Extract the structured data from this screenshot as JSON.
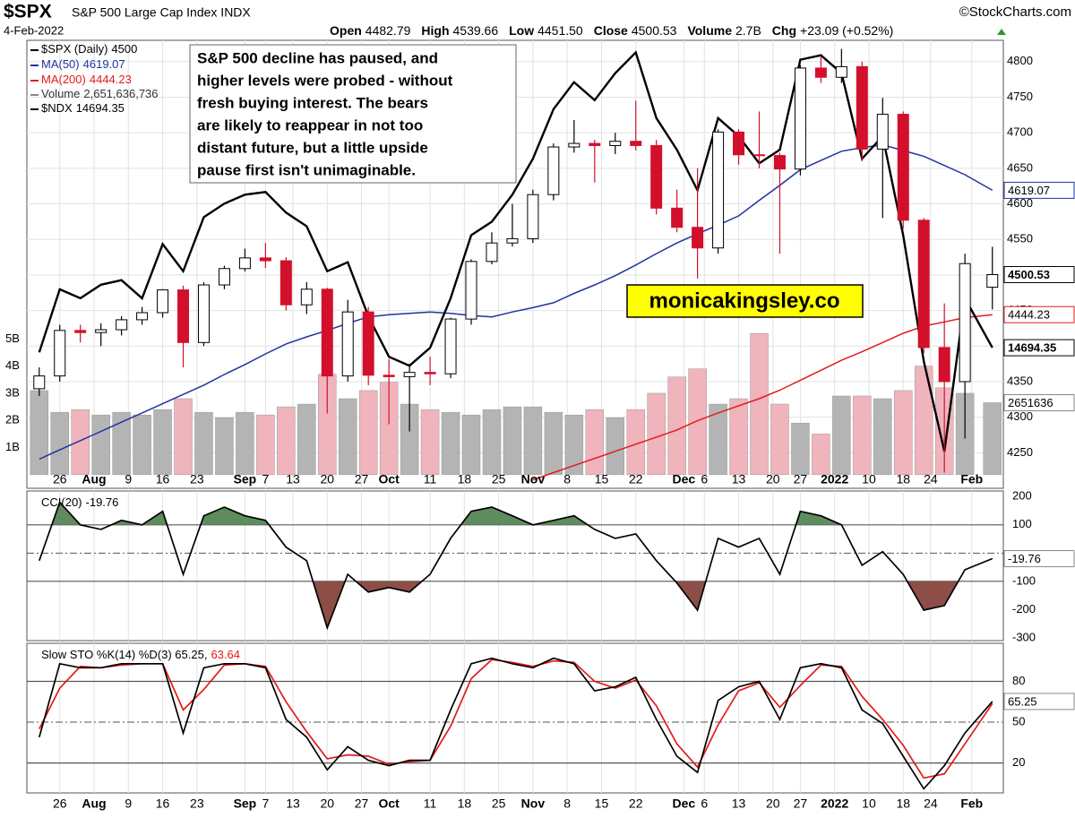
{
  "header": {
    "symbol": "$SPX",
    "name": "S&P 500 Large Cap Index INDX",
    "date": "4-Feb-2022",
    "source": "©StockCharts.com",
    "quote": [
      {
        "label": "Open",
        "value": "4482.79"
      },
      {
        "label": "High",
        "value": "4539.66"
      },
      {
        "label": "Low",
        "value": "4451.50"
      },
      {
        "label": "Close",
        "value": "4500.53"
      },
      {
        "label": "Volume",
        "value": "2.7B"
      },
      {
        "label": "Chg",
        "value": "+23.09 (+0.52%)"
      }
    ]
  },
  "chart_data": [
    {
      "type": "candlestick",
      "legend_name": "$SPX (Daily)",
      "legend_value": "4500",
      "x": [
        0,
        3,
        6,
        9,
        12,
        15,
        18,
        21,
        24,
        27,
        30,
        33,
        36,
        39,
        42,
        45,
        48,
        51,
        54,
        57,
        60,
        63,
        66,
        69,
        72,
        75,
        78,
        81,
        84,
        87,
        90,
        93,
        96,
        99,
        102,
        105,
        108,
        111,
        114,
        117,
        120,
        123,
        126,
        129,
        132,
        135,
        139
      ],
      "xlim": [
        -1.8,
        140.6
      ],
      "xticks": [
        {
          "value": 3,
          "label": "26"
        },
        {
          "value": 8,
          "label": "Aug",
          "bold": true
        },
        {
          "value": 13,
          "label": "9"
        },
        {
          "value": 18,
          "label": "16"
        },
        {
          "value": 23,
          "label": "23"
        },
        {
          "value": 30,
          "label": "Sep",
          "bold": true
        },
        {
          "value": 33,
          "label": "7"
        },
        {
          "value": 37,
          "label": "13"
        },
        {
          "value": 42,
          "label": "20"
        },
        {
          "value": 47,
          "label": "27"
        },
        {
          "value": 51,
          "label": "Oct",
          "bold": true
        },
        {
          "value": 57,
          "label": "11"
        },
        {
          "value": 62,
          "label": "18"
        },
        {
          "value": 67,
          "label": "25"
        },
        {
          "value": 72,
          "label": "Nov",
          "bold": true
        },
        {
          "value": 77,
          "label": "8"
        },
        {
          "value": 82,
          "label": "15"
        },
        {
          "value": 87,
          "label": "22"
        },
        {
          "value": 94,
          "label": "Dec",
          "bold": true
        },
        {
          "value": 97,
          "label": "6"
        },
        {
          "value": 102,
          "label": "13"
        },
        {
          "value": 107,
          "label": "20"
        },
        {
          "value": 111,
          "label": "27"
        },
        {
          "value": 116,
          "label": "2022",
          "bold": true
        },
        {
          "value": 121,
          "label": "10"
        },
        {
          "value": 126,
          "label": "18"
        },
        {
          "value": 130,
          "label": "24"
        },
        {
          "value": 136,
          "label": "Feb",
          "bold": true
        }
      ],
      "open": [
        4340,
        4358,
        4422,
        4419,
        4423,
        4437,
        4447,
        4479,
        4405,
        4486,
        4509,
        4524,
        4520,
        4458,
        4480,
        4358,
        4448,
        4359,
        4357,
        4363,
        4361,
        4438,
        4519,
        4545,
        4551,
        4613,
        4680,
        4685,
        4682,
        4688,
        4682,
        4594,
        4567,
        4538,
        4701,
        4669,
        4668,
        4649,
        4791,
        4778,
        4793,
        4677,
        4726,
        4577,
        4398,
        4350,
        4482.79
      ],
      "high": [
        4370,
        4430,
        4430,
        4432,
        4442,
        4455,
        4480,
        4485,
        4490,
        4513,
        4537,
        4545,
        4525,
        4490,
        4482,
        4465,
        4455,
        4382,
        4375,
        4385,
        4440,
        4522,
        4560,
        4600,
        4620,
        4685,
        4718,
        4690,
        4700,
        4745,
        4690,
        4620,
        4650,
        4705,
        4705,
        4730,
        4672,
        4795,
        4808,
        4818,
        4800,
        4749,
        4730,
        4580,
        4460,
        4530,
        4539.66
      ],
      "low": [
        4330,
        4350,
        4405,
        4400,
        4415,
        4430,
        4440,
        4370,
        4400,
        4480,
        4505,
        4510,
        4450,
        4445,
        4305,
        4350,
        4345,
        4290,
        4280,
        4345,
        4355,
        4430,
        4515,
        4540,
        4545,
        4605,
        4672,
        4630,
        4670,
        4675,
        4585,
        4560,
        4495,
        4530,
        4655,
        4650,
        4530,
        4640,
        4770,
        4770,
        4660,
        4580,
        4565,
        4390,
        4222,
        4270,
        4451.5
      ],
      "close": [
        4358,
        4422,
        4419,
        4423,
        4437,
        4447,
        4479,
        4405,
        4486,
        4509,
        4524,
        4520,
        4458,
        4480,
        4358,
        4448,
        4359,
        4357,
        4363,
        4361,
        4438,
        4519,
        4545,
        4551,
        4613,
        4680,
        4685,
        4682,
        4688,
        4682,
        4594,
        4567,
        4538,
        4701,
        4669,
        4668,
        4649,
        4791,
        4778,
        4793,
        4677,
        4726,
        4577,
        4398,
        4350,
        4516,
        4500.53
      ],
      "up_color": "#ffffff",
      "down_color": "#d2102c",
      "ylim": [
        4200,
        4830
      ],
      "yticks": [
        4250,
        4300,
        4350,
        4400,
        4450,
        4500,
        4550,
        4600,
        4650,
        4700,
        4750,
        4800
      ],
      "grid": true,
      "overlays": [
        {
          "name": "MA(200)",
          "color": "#e41a1a",
          "values": [
            null,
            null,
            null,
            null,
            null,
            null,
            null,
            null,
            null,
            null,
            null,
            null,
            null,
            null,
            null,
            null,
            null,
            null,
            null,
            null,
            null,
            null,
            null,
            null,
            4212,
            4222,
            4232,
            4242,
            4252,
            4262,
            4272,
            4282,
            4295,
            4306,
            4316,
            4326,
            4338,
            4352,
            4366,
            4380,
            4392,
            4405,
            4418,
            4428,
            4434,
            4440,
            4444.23
          ]
        },
        {
          "name": "MA(50)",
          "color": "#2233a0",
          "values": [
            4241,
            4254,
            4267,
            4280,
            4293,
            4306,
            4319,
            4332,
            4345,
            4360,
            4374,
            4389,
            4403,
            4413,
            4422,
            4432,
            4441,
            4444,
            4446,
            4448,
            4446,
            4443,
            4441,
            4448,
            4454,
            4461,
            4474,
            4486,
            4499,
            4514,
            4530,
            4545,
            4558,
            4570,
            4583,
            4605,
            4626,
            4648,
            4661,
            4674,
            4679,
            4683,
            4675,
            4667,
            4654,
            4641,
            4619.07
          ]
        },
        {
          "name": "$NDX",
          "color": "#000000",
          "axis": "y3",
          "values": [
            14665,
            15066,
            15009,
            15095,
            15124,
            15009,
            15353,
            15181,
            15525,
            15611,
            15668,
            15685,
            15554,
            15467,
            15181,
            15238,
            14894,
            14637,
            14580,
            14694,
            15009,
            15410,
            15496,
            15668,
            15897,
            16212,
            16384,
            16269,
            16441,
            16573,
            16155,
            15954,
            15696,
            16155,
            16040,
            15868,
            15954,
            16527,
            16555,
            16441,
            15897,
            16040,
            15410,
            14608,
            14035,
            15009,
            14694.35
          ]
        }
      ],
      "y3lim": [
        13800,
        16650
      ],
      "volume": {
        "name": "Volume",
        "value_label": "2,651,636,736",
        "tag_label": "2651636",
        "up_color": "#b4b4b4",
        "down_color": "#f0b4bc",
        "values": [
          3100000000,
          2300000000,
          2400000000,
          2200000000,
          2300000000,
          2200000000,
          2400000000,
          2800000000,
          2300000000,
          2100000000,
          2300000000,
          2200000000,
          2500000000,
          2600000000,
          3700000000,
          2800000000,
          3100000000,
          3400000000,
          2600000000,
          2400000000,
          2300000000,
          2200000000,
          2400000000,
          2500000000,
          2500000000,
          2300000000,
          2200000000,
          2400000000,
          2100000000,
          2400000000,
          3000000000,
          3600000000,
          3900000000,
          2600000000,
          2800000000,
          5200000000,
          2600000000,
          1900000000,
          1500000000,
          2900000000,
          2900000000,
          2800000000,
          3100000000,
          4000000000,
          3200000000,
          3000000000,
          2651636736
        ]
      },
      "vlim": [
        -500000000,
        16000000000
      ],
      "vticks": [
        {
          "value": 1000000000,
          "label": "1B"
        },
        {
          "value": 2000000000,
          "label": "2B"
        },
        {
          "value": 3000000000,
          "label": "3B"
        },
        {
          "value": 4000000000,
          "label": "4B"
        },
        {
          "value": 5000000000,
          "label": "5B"
        }
      ],
      "annotation": [
        "S&P 500 decline has paused, and",
        "higher levels were probed - without",
        "fresh buying interest. The bears",
        "are likely to reappear in not too",
        "distant future, but a little upside",
        "pause first isn't unimaginable."
      ],
      "watermark": "monicakingsley.co"
    },
    {
      "type": "line",
      "series": [
        {
          "name": "CCI(20)",
          "color": "#000000",
          "values": [
            -27,
            180,
            100,
            84,
            116,
            100,
            148,
            -75,
            132,
            163,
            132,
            116,
            21,
            -27,
            -265,
            -75,
            -138,
            -122,
            -138,
            -75,
            52,
            148,
            163,
            132,
            100,
            116,
            132,
            84,
            52,
            68,
            -27,
            -106,
            -202,
            52,
            21,
            52,
            -75,
            148,
            132,
            100,
            -43,
            5,
            -75,
            -202,
            -186,
            -59,
            -19.76
          ]
        }
      ],
      "ylim": [
        -310,
        220
      ],
      "yticks": [
        200,
        100,
        -100,
        -200,
        -300
      ],
      "levels": [
        100,
        -100
      ],
      "midline": 0,
      "fill_above": {
        "level": 100,
        "color": "#5e8c5e"
      },
      "fill_below": {
        "level": -100,
        "color": "#8c4e46"
      }
    },
    {
      "type": "line",
      "legend": "Slow STO %K(14) %D(3) 65.25,",
      "series": [
        {
          "name": "%K(14)",
          "color": "#000000",
          "values": [
            39,
            93,
            90,
            90,
            93,
            93,
            93,
            42,
            90,
            93,
            93,
            90,
            52,
            39,
            15,
            32,
            22,
            18,
            22,
            22,
            59,
            93,
            97,
            93,
            90,
            97,
            93,
            73,
            76,
            83,
            52,
            25,
            13,
            66,
            76,
            80,
            52,
            90,
            93,
            90,
            59,
            49,
            25,
            1,
            18,
            42,
            65.25
          ]
        },
        {
          "name": "%D(3)",
          "color": "#e41a1a",
          "values": [
            45,
            75,
            91,
            90,
            92,
            93,
            93,
            59,
            74,
            92,
            93,
            91,
            65,
            43,
            23,
            26,
            25,
            19,
            21,
            22,
            47,
            82,
            96,
            94,
            91,
            95,
            94,
            80,
            75,
            81,
            62,
            34,
            17,
            48,
            73,
            79,
            61,
            77,
            92,
            91,
            69,
            52,
            33,
            9,
            12,
            34,
            63.64
          ]
        }
      ],
      "ylim": [
        -2,
        108
      ],
      "yticks": [
        80,
        50,
        20
      ],
      "levels": [
        80,
        20
      ],
      "midline": 50
    }
  ]
}
